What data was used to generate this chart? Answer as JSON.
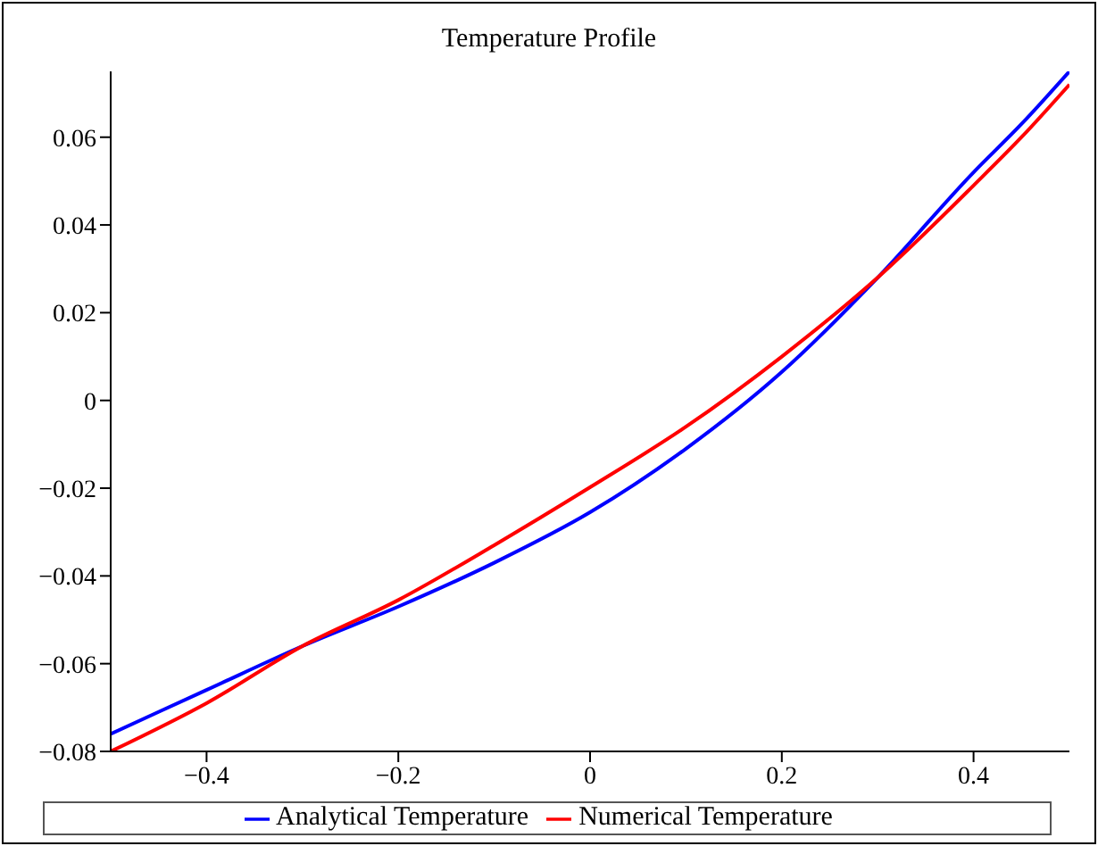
{
  "chart_data": {
    "type": "line",
    "title": "Temperature Profile",
    "x": [
      -0.5,
      -0.4,
      -0.3,
      -0.2,
      -0.1,
      0,
      0.1,
      0.2,
      0.3,
      0.4,
      0.45,
      0.5
    ],
    "series": [
      {
        "name": "Analytical Temperature",
        "color": "#0000ff",
        "values": [
          -0.076,
          -0.066,
          -0.056,
          -0.047,
          -0.037,
          -0.0255,
          -0.011,
          0.0065,
          0.028,
          0.052,
          0.063,
          0.075
        ]
      },
      {
        "name": "Numerical Temperature",
        "color": "#ff0000",
        "values": [
          -0.08,
          -0.069,
          -0.056,
          -0.0455,
          -0.033,
          -0.0198,
          -0.006,
          0.01,
          0.028,
          0.049,
          0.06,
          0.072
        ]
      }
    ],
    "xlim": [
      -0.5,
      0.5
    ],
    "xticks": [
      -0.4,
      -0.2,
      0,
      0.2,
      0.4
    ],
    "ylim": [
      -0.08,
      0.075
    ],
    "yticks": [
      -0.08,
      -0.06,
      -0.04,
      -0.02,
      0,
      0.02,
      0.04,
      0.06
    ],
    "grid": false,
    "legend": "bottom",
    "marker": "none",
    "line_style": "solid"
  }
}
